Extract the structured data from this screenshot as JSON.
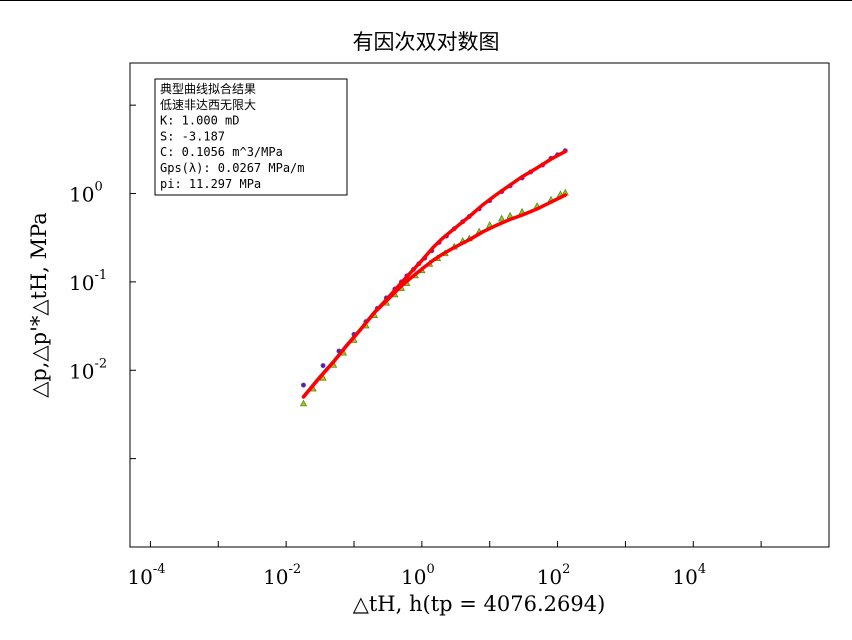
{
  "chart_data": {
    "type": "scatter",
    "title": "有因次双对数图",
    "xlabel": "△tH, h(tp = 4076.2694)",
    "ylabel": "△p,△p'*△tH, MPa",
    "x_scale": "log",
    "y_scale": "log",
    "xlim": [
      5e-05,
      1000000
    ],
    "ylim": [
      0.0001,
      30
    ],
    "grid": false,
    "x_ticks": [
      {
        "value": 0.0001,
        "base": "10",
        "exp": "-4"
      },
      {
        "value": 0.01,
        "base": "10",
        "exp": "-2"
      },
      {
        "value": 1,
        "base": "10",
        "exp": "0"
      },
      {
        "value": 100,
        "base": "10",
        "exp": "2"
      },
      {
        "value": 10000,
        "base": "10",
        "exp": "4"
      }
    ],
    "y_ticks": [
      {
        "value": 0.01,
        "base": "10",
        "exp": "-2"
      },
      {
        "value": 0.1,
        "base": "10",
        "exp": "-1"
      },
      {
        "value": 1,
        "base": "10",
        "exp": "0"
      }
    ],
    "legend_box": {
      "position": "top-left",
      "lines": [
        "典型曲线拟合结果",
        "低速非达西无限大",
        "       K: 1.000 mD",
        "       S: -3.187",
        "       C: 0.1056 m^3/MPa",
        "Gps(λ): 0.0267 MPa/m",
        "      pi: 11.297 MPa"
      ]
    },
    "series": [
      {
        "role": "pressure-change-data",
        "marker": "circle",
        "color": "#3a2fb0",
        "x": [
          0.018,
          0.035,
          0.06,
          0.1,
          0.15,
          0.22,
          0.3,
          0.4,
          0.5,
          0.6,
          0.75,
          0.9,
          1.1,
          1.4,
          1.8,
          2.3,
          3,
          4,
          5,
          7,
          10,
          15,
          20,
          30,
          40,
          60,
          80,
          100,
          130
        ],
        "y": [
          0.0068,
          0.0113,
          0.0165,
          0.0255,
          0.0355,
          0.05,
          0.066,
          0.083,
          0.1,
          0.117,
          0.138,
          0.16,
          0.185,
          0.225,
          0.28,
          0.33,
          0.4,
          0.48,
          0.55,
          0.67,
          0.83,
          1.05,
          1.22,
          1.5,
          1.75,
          2.1,
          2.5,
          2.75,
          3.05
        ]
      },
      {
        "role": "derivative-data",
        "marker": "triangle",
        "color": "#3a8a12",
        "x": [
          0.018,
          0.025,
          0.035,
          0.05,
          0.07,
          0.1,
          0.15,
          0.2,
          0.3,
          0.4,
          0.5,
          0.6,
          0.8,
          1,
          1.3,
          1.7,
          2.2,
          3,
          4,
          5,
          7,
          10,
          15,
          20,
          30,
          50,
          80,
          110,
          130
        ],
        "y": [
          0.0042,
          0.0062,
          0.0082,
          0.0115,
          0.0158,
          0.022,
          0.032,
          0.042,
          0.058,
          0.072,
          0.085,
          0.097,
          0.118,
          0.135,
          0.16,
          0.185,
          0.21,
          0.25,
          0.29,
          0.31,
          0.37,
          0.44,
          0.52,
          0.56,
          0.62,
          0.72,
          0.85,
          0.98,
          1.02
        ]
      },
      {
        "role": "pressure-model-curve",
        "marker": "line",
        "color": "#ff0000",
        "x": [
          0.018,
          0.03,
          0.05,
          0.08,
          0.12,
          0.2,
          0.3,
          0.5,
          0.7,
          1,
          1.5,
          2,
          3,
          5,
          8,
          12,
          20,
          30,
          50,
          80,
          130
        ],
        "y": [
          0.005,
          0.008,
          0.0125,
          0.0195,
          0.028,
          0.045,
          0.063,
          0.098,
          0.13,
          0.175,
          0.25,
          0.31,
          0.4,
          0.55,
          0.75,
          0.95,
          1.25,
          1.55,
          1.95,
          2.45,
          3.0
        ]
      },
      {
        "role": "derivative-model-curve",
        "marker": "line",
        "color": "#ff0000",
        "x": [
          0.018,
          0.03,
          0.05,
          0.08,
          0.12,
          0.2,
          0.3,
          0.5,
          0.7,
          1,
          1.5,
          2,
          3,
          5,
          8,
          12,
          20,
          30,
          50,
          80,
          130
        ],
        "y": [
          0.005,
          0.008,
          0.0125,
          0.0195,
          0.028,
          0.045,
          0.061,
          0.09,
          0.112,
          0.14,
          0.178,
          0.205,
          0.245,
          0.3,
          0.37,
          0.43,
          0.51,
          0.57,
          0.67,
          0.8,
          0.96
        ]
      }
    ]
  }
}
